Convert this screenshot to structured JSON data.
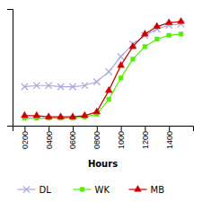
{
  "chart_data": {
    "type": "line",
    "x_label": "Hours",
    "x": [
      200,
      300,
      400,
      500,
      600,
      700,
      800,
      900,
      1000,
      1100,
      1200,
      1300,
      1400,
      1500
    ],
    "series": [
      {
        "name": "DL",
        "color": "#aaaadd",
        "marker": "x",
        "values": [
          2.8,
          2.9,
          2.9,
          2.8,
          2.8,
          2.9,
          3.2,
          4.0,
          5.2,
          6.2,
          6.9,
          7.4,
          7.7,
          7.8
        ]
      },
      {
        "name": "WK",
        "color": "#55ee00",
        "marker": "square",
        "values": [
          0.3,
          0.3,
          0.3,
          0.3,
          0.3,
          0.4,
          0.6,
          1.8,
          3.5,
          5.0,
          6.0,
          6.6,
          6.9,
          7.0
        ]
      },
      {
        "name": "MB",
        "color": "#cc0000",
        "marker": "triangle",
        "values": [
          0.5,
          0.5,
          0.4,
          0.4,
          0.4,
          0.5,
          0.8,
          2.5,
          4.5,
          6.0,
          7.0,
          7.6,
          7.9,
          8.0
        ]
      }
    ],
    "xlim": [
      100,
      1600
    ],
    "xticks": [
      {
        "value": 200,
        "label": "0200"
      },
      {
        "value": 400,
        "label": "0400"
      },
      {
        "value": 600,
        "label": "0600"
      },
      {
        "value": 800,
        "label": "0800"
      },
      {
        "value": 1000,
        "label": "1000"
      },
      {
        "value": 1200,
        "label": "1200"
      },
      {
        "value": 1400,
        "label": "1400"
      }
    ],
    "ylim": [
      -0.3,
      9.0
    ],
    "yticks": [],
    "tick_labels": "x",
    "grid": false,
    "legend": "bottom"
  }
}
